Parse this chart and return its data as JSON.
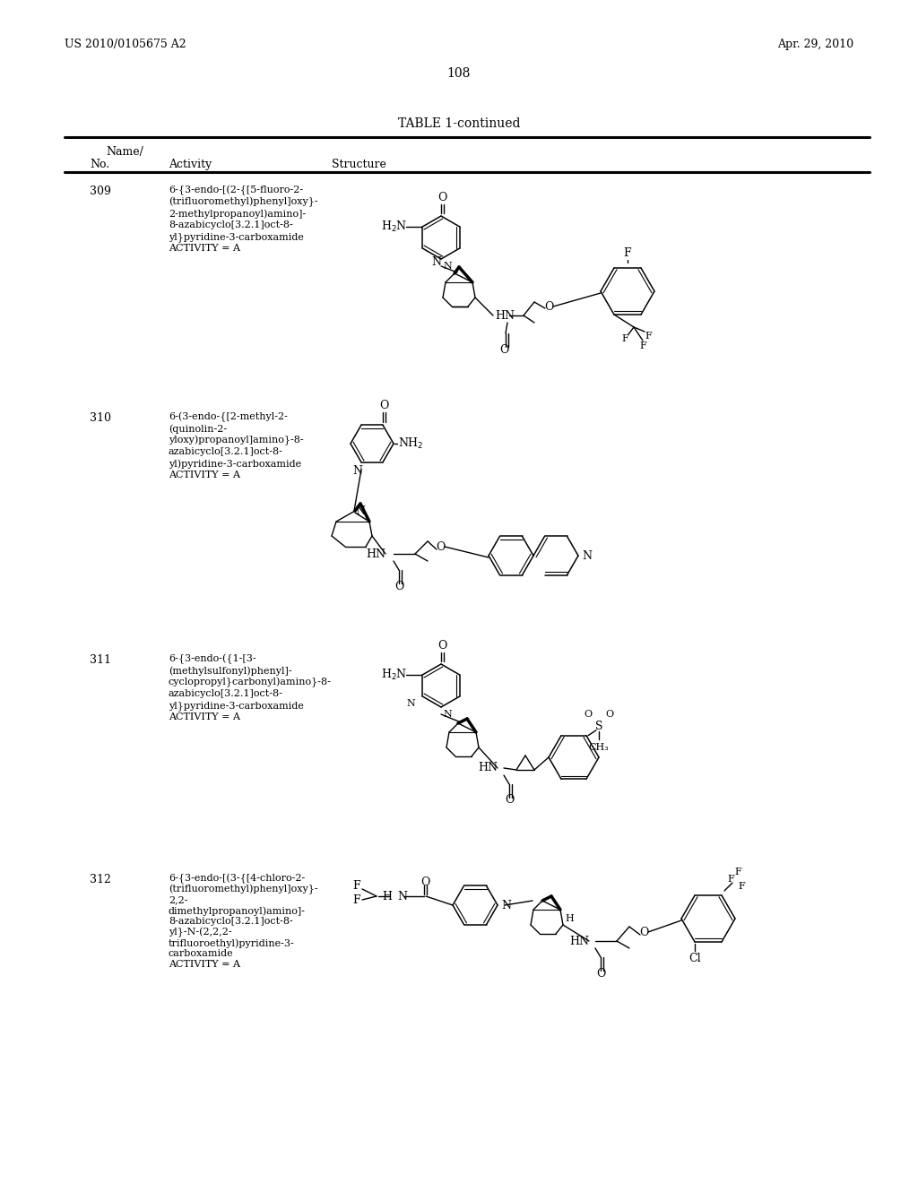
{
  "page_header_left": "US 2010/0105675 A2",
  "page_header_right": "Apr. 29, 2010",
  "page_number": "108",
  "table_title": "TABLE 1-continued",
  "background_color": "#ffffff",
  "text_color": "#000000",
  "entries": [
    {
      "no": "309",
      "name": [
        "6-{3-endo-[(2-{[5-fluoro-2-",
        "(trifluoromethyl)phenyl]oxy}-",
        "2-methylpropanoyl)amino]-",
        "8-azabicyclo[3.2.1]oct-8-",
        "yl}pyridine-3-carboxamide",
        "ACTIVITY = A"
      ]
    },
    {
      "no": "310",
      "name": [
        "6-(3-endo-{[2-methyl-2-",
        "(quinolin-2-",
        "yloxy)propanoyl]amino}-8-",
        "azabicyclo[3.2.1]oct-8-",
        "yl)pyridine-3-carboxamide",
        "ACTIVITY = A"
      ]
    },
    {
      "no": "311",
      "name": [
        "6-{3-endo-({1-[3-",
        "(methylsulfonyl)phenyl]-",
        "cyclopropyl}carbonyl)amino}-8-",
        "azabicyclo[3.2.1]oct-8-",
        "yl}pyridine-3-carboxamide",
        "ACTIVITY = A"
      ]
    },
    {
      "no": "312",
      "name": [
        "6-{3-endo-[(3-{[4-chloro-2-",
        "(trifluoromethyl)phenyl]oxy}-",
        "2,2-",
        "dimethylpropanoyl)amino]-",
        "8-azabicyclo[3.2.1]oct-8-",
        "yl}-N-(2,2,2-",
        "trifluoroethyl)pyridine-3-",
        "carboxamide",
        "ACTIVITY = A"
      ]
    }
  ]
}
